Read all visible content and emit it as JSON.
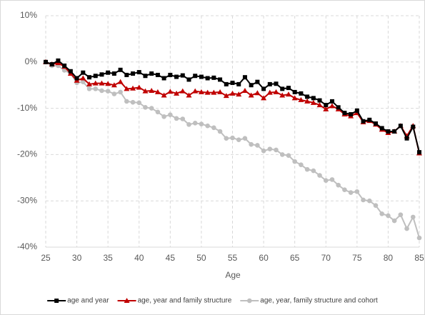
{
  "chart_data": {
    "type": "line",
    "x_label": "Age",
    "x": [
      25,
      26,
      27,
      28,
      29,
      30,
      31,
      32,
      33,
      34,
      35,
      36,
      37,
      38,
      39,
      40,
      41,
      42,
      43,
      44,
      45,
      46,
      47,
      48,
      49,
      50,
      51,
      52,
      53,
      54,
      55,
      56,
      57,
      58,
      59,
      60,
      61,
      62,
      63,
      64,
      65,
      66,
      67,
      68,
      69,
      70,
      71,
      72,
      73,
      74,
      75,
      76,
      77,
      78,
      79,
      80,
      81,
      82,
      83,
      84,
      85
    ],
    "xlim": [
      25,
      85
    ],
    "xticks": [
      25,
      30,
      35,
      40,
      45,
      50,
      55,
      60,
      65,
      70,
      75,
      80,
      85
    ],
    "ylim": [
      -40,
      10
    ],
    "yticks": [
      {
        "value": -40,
        "label": "-40%"
      },
      {
        "value": -30,
        "label": "-30%"
      },
      {
        "value": -20,
        "label": "-20%"
      },
      {
        "value": -10,
        "label": "-10%"
      },
      {
        "value": 0,
        "label": "0%"
      },
      {
        "value": 10,
        "label": "10%"
      }
    ],
    "grid": true,
    "legend": "bottom",
    "series": [
      {
        "name": "age and year",
        "color": "#000000",
        "marker": "square",
        "values": [
          0,
          -0.5,
          0.3,
          -0.8,
          -2,
          -3.5,
          -2.3,
          -3.3,
          -3,
          -2.7,
          -2.3,
          -2.5,
          -1.7,
          -2.8,
          -2.5,
          -2.2,
          -3,
          -2.5,
          -2.8,
          -3.5,
          -2.8,
          -3.2,
          -2.9,
          -3.8,
          -3,
          -3.2,
          -3.5,
          -3.4,
          -3.8,
          -4.8,
          -4.5,
          -4.8,
          -3.3,
          -5,
          -4.3,
          -5.8,
          -4.8,
          -4.7,
          -5.8,
          -5.6,
          -6.5,
          -6.8,
          -7.5,
          -7.8,
          -8.3,
          -9.3,
          -8.5,
          -9.8,
          -11,
          -11.3,
          -10.5,
          -12.8,
          -12.5,
          -13.3,
          -14.3,
          -15,
          -15,
          -13.8,
          -16.5,
          -14,
          -19.5
        ]
      },
      {
        "name": "age, year and family structure",
        "color": "#c00000",
        "marker": "triangle",
        "values": [
          0,
          -0.5,
          -0.2,
          -1,
          -2.5,
          -4,
          -3.5,
          -4.8,
          -4.6,
          -4.6,
          -4.7,
          -5,
          -4.3,
          -5.8,
          -5.7,
          -5.5,
          -6.3,
          -6.2,
          -6.5,
          -7.2,
          -6.4,
          -6.8,
          -6.3,
          -7.2,
          -6.3,
          -6.5,
          -6.6,
          -6.6,
          -6.5,
          -7.3,
          -6.8,
          -7,
          -6.2,
          -7.2,
          -6.7,
          -7.8,
          -6.6,
          -6.5,
          -7.2,
          -7,
          -7.8,
          -8.2,
          -8.5,
          -8.8,
          -9.3,
          -10.2,
          -9.5,
          -10.2,
          -11.3,
          -11.7,
          -11,
          -13,
          -12.7,
          -13.5,
          -14.6,
          -15.3,
          -15,
          -13.8,
          -16,
          -13.8,
          -19.7
        ]
      },
      {
        "name": "age, year, family structure and cohort",
        "color": "#bfbfbf",
        "marker": "circle",
        "values": [
          0,
          -0.8,
          -0.8,
          -1.8,
          -2.5,
          -4.5,
          -4.3,
          -5.8,
          -5.8,
          -6.2,
          -6.3,
          -6.9,
          -6.5,
          -8.5,
          -8.7,
          -8.8,
          -9.8,
          -10,
          -10.8,
          -11.8,
          -11.4,
          -12.2,
          -12.3,
          -13.5,
          -13.2,
          -13.4,
          -13.8,
          -14.2,
          -15,
          -16.5,
          -16.4,
          -16.8,
          -16.5,
          -17.8,
          -18,
          -19.2,
          -18.8,
          -19,
          -20,
          -20.2,
          -21.5,
          -22.2,
          -23.2,
          -23.5,
          -24.5,
          -25.6,
          -25.4,
          -26.6,
          -27.6,
          -28.2,
          -28,
          -29.8,
          -30,
          -31,
          -32.8,
          -33.2,
          -34.3,
          -33,
          -36,
          -33.5,
          -38
        ]
      }
    ]
  }
}
